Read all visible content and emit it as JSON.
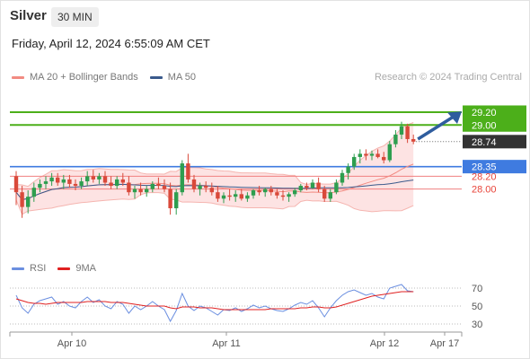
{
  "header": {
    "instrument": "Silver",
    "timeframe": "30 MIN",
    "datetime": "Friday, April 12, 2024 6:55:09 AM CET"
  },
  "legend_main": [
    {
      "label": "MA 20 + Bollinger Bands",
      "color": "#f28b82"
    },
    {
      "label": "MA 50",
      "color": "#3a5a8c"
    }
  ],
  "research_credit": "Research © 2024 Trading Central",
  "legend_rsi": [
    {
      "label": "RSI",
      "color": "#6b8fe0"
    },
    {
      "label": "9MA",
      "color": "#e02020"
    }
  ],
  "colors": {
    "up": "#2e9e4f",
    "down": "#d9493a",
    "resistance": "#4caf1a",
    "pivot": "#3f7be0",
    "support": "#f08080",
    "current": "#333333",
    "arrow": "#2f5d9e",
    "band_fill": "#fde3e3"
  },
  "chart_data": [
    {
      "type": "candlestick",
      "title": "Silver",
      "ylim": [
        27.0,
        29.55
      ],
      "x_ticks": [
        "Apr 10",
        "Apr 11",
        "Apr 12",
        "Apr 17"
      ],
      "levels": [
        {
          "value": 29.2,
          "label": "29.20",
          "kind": "resistance"
        },
        {
          "value": 29.0,
          "label": "29.00",
          "kind": "resistance"
        },
        {
          "value": 28.74,
          "label": "28.74",
          "kind": "current"
        },
        {
          "value": 28.35,
          "label": "28.35",
          "kind": "pivot"
        },
        {
          "value": 28.2,
          "label": "28.20",
          "kind": "support"
        },
        {
          "value": 28.0,
          "label": "28.00",
          "kind": "support"
        }
      ],
      "ohlc": [
        [
          28.2,
          28.28,
          27.75,
          27.95
        ],
        [
          27.95,
          28.05,
          27.55,
          27.72
        ],
        [
          27.72,
          27.98,
          27.62,
          27.88
        ],
        [
          27.88,
          28.1,
          27.8,
          28.02
        ],
        [
          28.02,
          28.15,
          27.95,
          28.08
        ],
        [
          28.08,
          28.2,
          28.0,
          28.12
        ],
        [
          28.12,
          28.25,
          28.05,
          28.18
        ],
        [
          28.18,
          28.25,
          28.05,
          28.1
        ],
        [
          28.1,
          28.22,
          28.0,
          28.15
        ],
        [
          28.15,
          28.22,
          28.02,
          28.08
        ],
        [
          28.08,
          28.15,
          27.98,
          28.05
        ],
        [
          28.05,
          28.18,
          28.0,
          28.12
        ],
        [
          28.12,
          28.28,
          28.05,
          28.2
        ],
        [
          28.2,
          28.3,
          28.1,
          28.15
        ],
        [
          28.15,
          28.25,
          28.08,
          28.2
        ],
        [
          28.2,
          28.28,
          28.05,
          28.1
        ],
        [
          28.1,
          28.2,
          28.0,
          28.05
        ],
        [
          28.05,
          28.2,
          28.0,
          28.15
        ],
        [
          28.15,
          28.25,
          28.05,
          28.1
        ],
        [
          28.1,
          28.2,
          27.9,
          27.95
        ],
        [
          27.95,
          28.05,
          27.85,
          28.0
        ],
        [
          28.0,
          28.1,
          27.9,
          27.95
        ],
        [
          27.95,
          28.05,
          27.88,
          28.0
        ],
        [
          28.0,
          28.12,
          27.95,
          28.08
        ],
        [
          28.08,
          28.18,
          28.0,
          28.05
        ],
        [
          28.05,
          28.15,
          27.95,
          28.0
        ],
        [
          28.0,
          28.1,
          27.6,
          27.7
        ],
        [
          27.7,
          28.0,
          27.6,
          27.95
        ],
        [
          27.95,
          28.45,
          27.9,
          28.4
        ],
        [
          28.4,
          28.55,
          28.1,
          28.15
        ],
        [
          28.15,
          28.22,
          27.95,
          28.0
        ],
        [
          28.0,
          28.1,
          27.9,
          28.05
        ],
        [
          28.05,
          28.12,
          27.95,
          28.02
        ],
        [
          28.02,
          28.1,
          27.9,
          27.95
        ],
        [
          27.95,
          28.05,
          27.8,
          27.85
        ],
        [
          27.85,
          27.95,
          27.78,
          27.9
        ],
        [
          27.9,
          28.0,
          27.82,
          27.88
        ],
        [
          27.88,
          27.98,
          27.8,
          27.92
        ],
        [
          27.92,
          28.0,
          27.82,
          27.85
        ],
        [
          27.85,
          27.95,
          27.8,
          27.9
        ],
        [
          27.9,
          28.0,
          27.85,
          27.98
        ],
        [
          27.98,
          28.05,
          27.9,
          27.95
        ],
        [
          27.95,
          28.02,
          27.88,
          28.0
        ],
        [
          28.0,
          28.05,
          27.9,
          27.95
        ],
        [
          27.95,
          28.0,
          27.85,
          27.9
        ],
        [
          27.9,
          27.98,
          27.82,
          27.88
        ],
        [
          27.88,
          27.95,
          27.8,
          27.92
        ],
        [
          27.92,
          28.02,
          27.88,
          27.98
        ],
        [
          27.98,
          28.08,
          27.95,
          28.05
        ],
        [
          28.05,
          28.1,
          27.98,
          28.02
        ],
        [
          28.02,
          28.15,
          28.0,
          28.1
        ],
        [
          28.1,
          28.18,
          27.95,
          28.0
        ],
        [
          28.0,
          28.05,
          27.8,
          27.85
        ],
        [
          27.85,
          28.0,
          27.8,
          27.95
        ],
        [
          27.95,
          28.15,
          27.92,
          28.1
        ],
        [
          28.1,
          28.3,
          28.05,
          28.25
        ],
        [
          28.25,
          28.4,
          28.15,
          28.35
        ],
        [
          28.35,
          28.55,
          28.3,
          28.5
        ],
        [
          28.5,
          28.62,
          28.4,
          28.55
        ],
        [
          28.55,
          28.62,
          28.45,
          28.52
        ],
        [
          28.52,
          28.6,
          28.45,
          28.55
        ],
        [
          28.55,
          28.62,
          28.48,
          28.5
        ],
        [
          28.5,
          28.58,
          28.4,
          28.45
        ],
        [
          28.45,
          28.75,
          28.42,
          28.7
        ],
        [
          28.7,
          28.92,
          28.65,
          28.85
        ],
        [
          28.85,
          29.05,
          28.78,
          28.98
        ],
        [
          28.98,
          29.02,
          28.72,
          28.78
        ],
        [
          28.78,
          28.85,
          28.7,
          28.74
        ]
      ]
    },
    {
      "type": "line",
      "title": "RSI",
      "ylim": [
        25,
        78
      ],
      "y_ticks": [
        70,
        50,
        30
      ],
      "series": [
        {
          "name": "RSI",
          "values": [
            62,
            48,
            42,
            52,
            56,
            58,
            60,
            52,
            55,
            50,
            48,
            55,
            60,
            54,
            57,
            50,
            47,
            55,
            52,
            42,
            50,
            46,
            50,
            55,
            50,
            46,
            33,
            45,
            64,
            50,
            45,
            50,
            48,
            44,
            40,
            46,
            45,
            48,
            44,
            47,
            51,
            48,
            50,
            47,
            45,
            44,
            47,
            51,
            54,
            52,
            56,
            48,
            38,
            48,
            56,
            62,
            66,
            68,
            65,
            62,
            64,
            60,
            58,
            70,
            72,
            74,
            67,
            66
          ]
        },
        {
          "name": "9MA",
          "values": [
            58,
            56,
            54,
            53,
            53,
            52,
            53,
            54,
            54,
            54,
            54,
            54,
            55,
            55,
            55,
            55,
            54,
            54,
            54,
            53,
            52,
            51,
            50,
            50,
            50,
            50,
            48,
            47,
            49,
            49,
            49,
            48,
            48,
            48,
            47,
            46,
            46,
            46,
            46,
            46,
            46,
            46,
            46,
            47,
            47,
            47,
            47,
            47,
            48,
            48,
            49,
            49,
            48,
            48,
            49,
            51,
            53,
            55,
            57,
            59,
            61,
            62,
            63,
            64,
            65,
            66,
            66,
            66
          ]
        }
      ]
    }
  ]
}
